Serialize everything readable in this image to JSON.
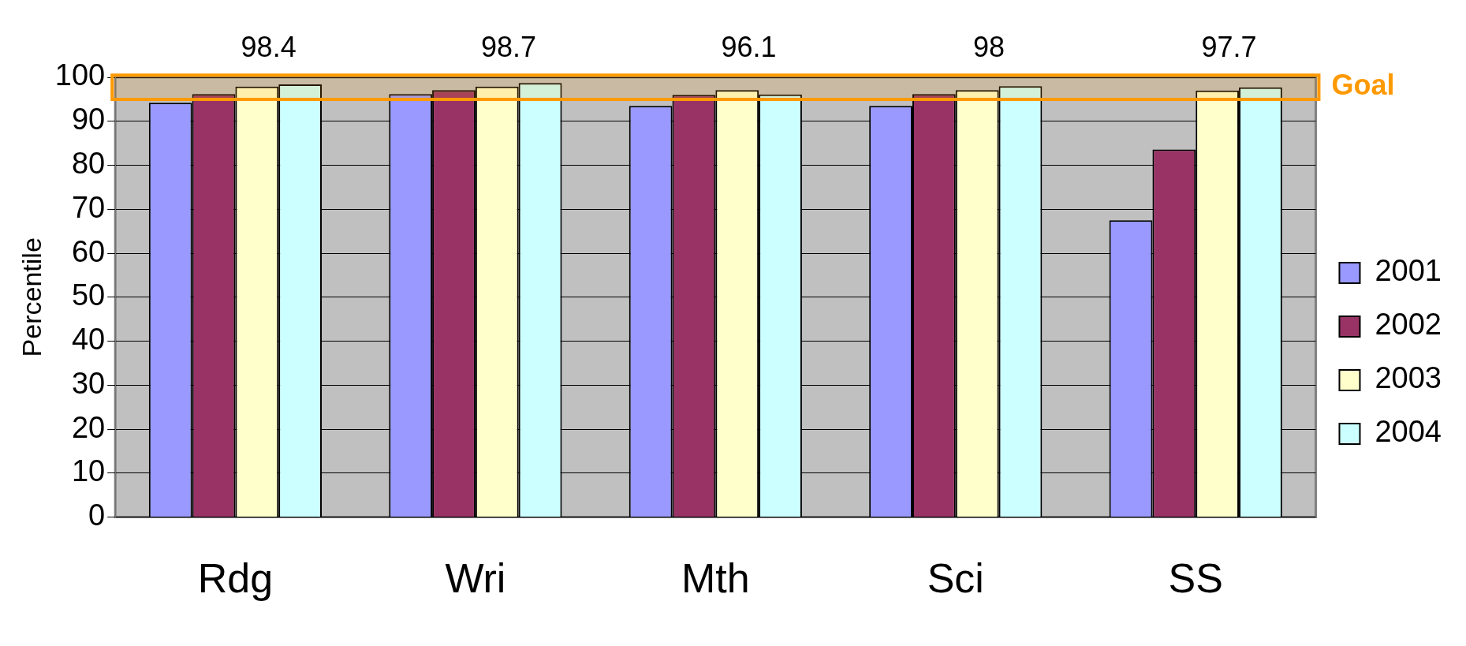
{
  "chart_data": {
    "type": "bar",
    "ylabel": "Percentile",
    "categories": [
      "Rdg",
      "Wri",
      "Mth",
      "Sci",
      "SS"
    ],
    "series": [
      {
        "name": "2001",
        "color": "#9999ff",
        "values": [
          94.2,
          96.2,
          93.5,
          93.5,
          67.5
        ]
      },
      {
        "name": "2002",
        "color": "#993366",
        "values": [
          96.2,
          97.1,
          96,
          96.2,
          83.6
        ]
      },
      {
        "name": "2003",
        "color": "#ffffcc",
        "values": [
          97.9,
          97.9,
          97.1,
          97.1,
          97
        ]
      },
      {
        "name": "2004",
        "color": "#ccffff",
        "values": [
          98.4,
          98.7,
          96.1,
          98,
          97.7
        ],
        "value_labels": [
          "98.4",
          "98.7",
          "96.1",
          "98",
          "97.7"
        ]
      }
    ],
    "ylim": [
      0,
      100
    ],
    "yticks": [
      0,
      10,
      20,
      30,
      40,
      50,
      60,
      70,
      80,
      90,
      100
    ],
    "grid": "y",
    "legend": "right",
    "bands": [
      {
        "axis": "y",
        "from": 95,
        "to": 100.5,
        "label": "Goal",
        "color": "#ff9900"
      }
    ]
  }
}
